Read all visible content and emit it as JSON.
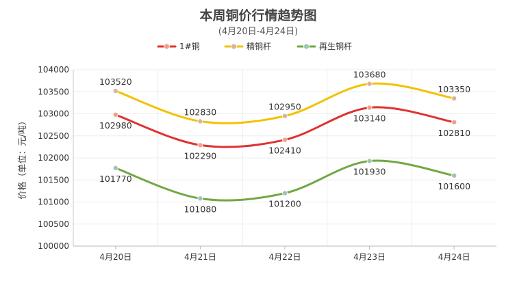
{
  "chart_data": {
    "type": "line",
    "title": "本周铜价行情趋势图",
    "subtitle": "(4月20日-4月24日)",
    "xlabel": "",
    "ylabel": "价格（单位：元/吨）",
    "categories": [
      "4月20日",
      "4月21日",
      "4月22日",
      "4月23日",
      "4月24日"
    ],
    "ylim": [
      100000,
      104000
    ],
    "yticks": [
      100000,
      100500,
      101000,
      101500,
      102000,
      102500,
      103000,
      103500,
      104000
    ],
    "grid": true,
    "legend_position": "top-center",
    "series": [
      {
        "name": "1#铜",
        "values": [
          102980,
          102290,
          102410,
          103140,
          102810
        ],
        "color": "#e03232",
        "marker_color": "#f0a08a",
        "label_position": "below"
      },
      {
        "name": "精铜杆",
        "values": [
          103520,
          102830,
          102950,
          103680,
          103350
        ],
        "color": "#f2c200",
        "marker_color": "#d8b49a",
        "label_position": "above"
      },
      {
        "name": "再生铜杆",
        "values": [
          101770,
          101080,
          101200,
          101930,
          101600
        ],
        "color": "#72a844",
        "marker_color": "#9ec4b4",
        "label_position": "below"
      }
    ]
  }
}
